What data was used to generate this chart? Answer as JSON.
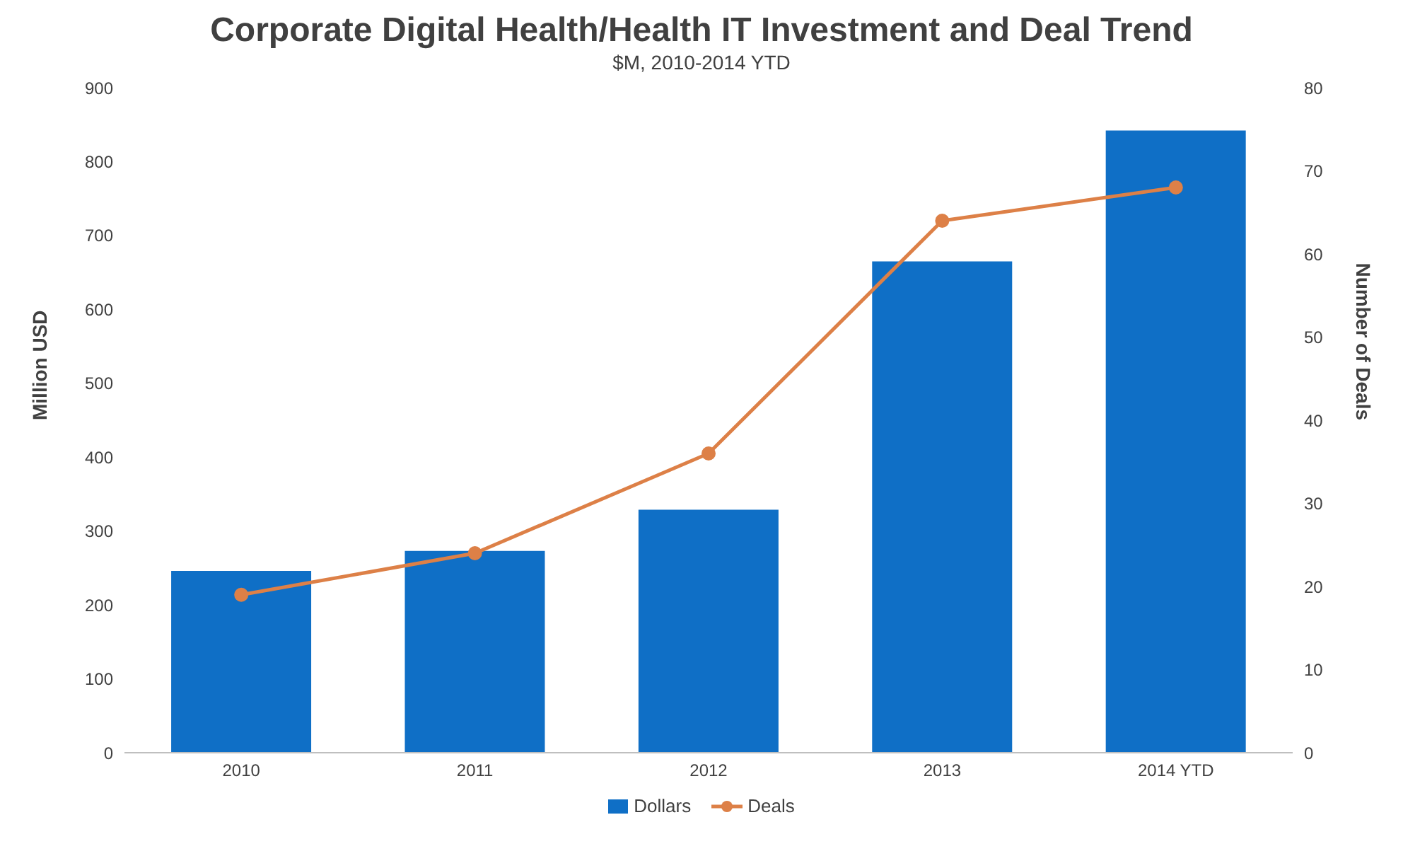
{
  "chart_data": {
    "type": "bar",
    "title": "Corporate Digital Health/Health IT Investment and Deal Trend",
    "subtitle": "$M, 2010-2014 YTD",
    "categories": [
      "2010",
      "2011",
      "2012",
      "2013",
      "2014 YTD"
    ],
    "series": [
      {
        "name": "Dollars",
        "color": "#0f6fc6",
        "values": [
          246,
          273,
          329,
          665,
          842
        ]
      },
      {
        "name": "Deals",
        "type": "line",
        "axis": "y2",
        "color": "#dd8047",
        "values": [
          19,
          24,
          36,
          64,
          68
        ]
      }
    ],
    "ylabel": "Million USD",
    "y2label": "Number of Deals",
    "ylim": [
      0,
      900
    ],
    "yticks": [
      0,
      100,
      200,
      300,
      400,
      500,
      600,
      700,
      800,
      900
    ],
    "y2lim": [
      0,
      80
    ],
    "y2ticks": [
      0,
      10,
      20,
      30,
      40,
      50,
      60,
      70,
      80
    ],
    "grid": false,
    "legend": "bottom",
    "marker": "circle",
    "line_style": "solid"
  }
}
